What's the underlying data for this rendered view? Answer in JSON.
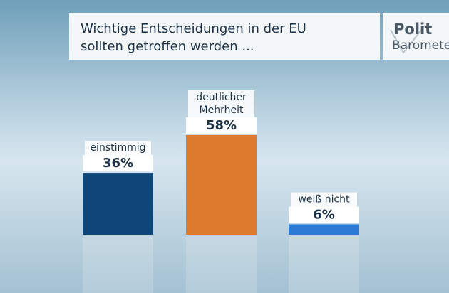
{
  "chart_data": {
    "type": "bar",
    "title": [
      "Wichtige Entscheidungen in der EU",
      "sollten getroffen werden ..."
    ],
    "logo": [
      "Polit",
      "Barometer"
    ],
    "categories": [
      [
        "einstimmig"
      ],
      [
        "deutlicher",
        "Mehrheit"
      ],
      [
        "weiß nicht"
      ]
    ],
    "values": [
      36,
      58,
      6
    ],
    "value_labels": [
      "36%",
      "58%",
      "6%"
    ],
    "colors": [
      "#0e4677",
      "#de7a2d",
      "#2b7bd5"
    ]
  }
}
